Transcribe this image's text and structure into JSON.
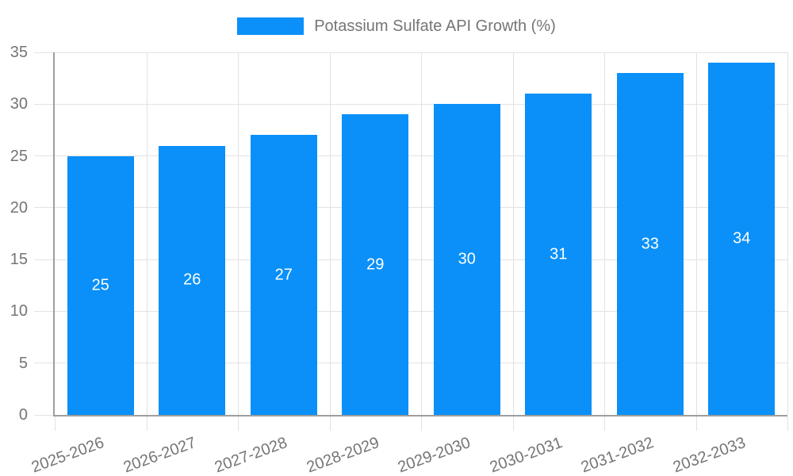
{
  "legend": {
    "label": "Potassium Sulfate API Growth (%)"
  },
  "colors": {
    "bar": "#0a90f8",
    "axis_line": "#9e9e9e",
    "gridline": "#e2e2e2",
    "axis_label": "#757575",
    "value_label": "#ffffff",
    "background": "#ffffff"
  },
  "chart_data": {
    "type": "bar",
    "title": "",
    "legend_label": "Potassium Sulfate API Growth (%)",
    "legend_position": "top-center",
    "categories": [
      "2025-2026",
      "2026-2027",
      "2027-2028",
      "2028-2029",
      "2029-2030",
      "2030-2031",
      "2031-2032",
      "2032-2033"
    ],
    "values": [
      25,
      26,
      27,
      29,
      30,
      31,
      33,
      34
    ],
    "value_labels_shown": true,
    "xlabel": "",
    "ylabel": "",
    "ylim": [
      0,
      35
    ],
    "yticks": [
      0,
      5,
      10,
      15,
      20,
      25,
      30,
      35
    ],
    "grid": true,
    "vertical_grid": true,
    "x_tick_rotation_deg": -20,
    "bar_color": "#0a90f8"
  }
}
